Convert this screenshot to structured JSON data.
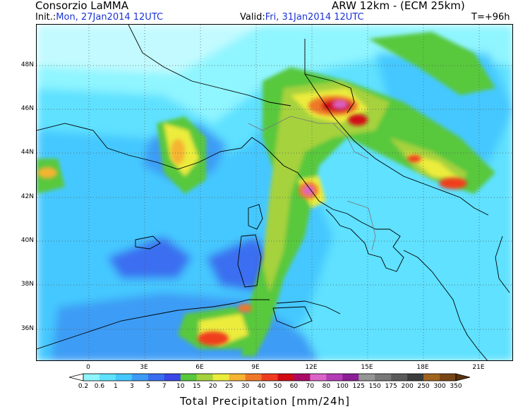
{
  "header": {
    "producer": "Consorzio LaMMA",
    "model": "ARW 12km - (ECM 25km)",
    "init_label": "Init.:",
    "init_value": "Mon, 27Jan2014 12UTC",
    "valid_label": "Valid:",
    "valid_value": "Fri, 31Jan2014 12UTC",
    "lead_time": "T=+96h"
  },
  "map": {
    "lat_labels": [
      "48N",
      "46N",
      "44N",
      "42N",
      "40N",
      "38N",
      "36N"
    ],
    "lon_labels": [
      "0",
      "3E",
      "6E",
      "9E",
      "12E",
      "15E",
      "18E",
      "21E"
    ]
  },
  "colorbar": {
    "title": "Total Precipitation [mm/24h]",
    "ticks": [
      "0.2",
      "0.6",
      "1",
      "3",
      "5",
      "7",
      "10",
      "15",
      "20",
      "25",
      "30",
      "40",
      "50",
      "60",
      "70",
      "80",
      "100",
      "125",
      "150",
      "175",
      "200",
      "250",
      "300",
      "350"
    ],
    "colors": [
      "#ffffff",
      "#8ff5ff",
      "#5fe1ff",
      "#44c8ff",
      "#3c9cf5",
      "#3a6ef0",
      "#3a46e6",
      "#58c83c",
      "#a6d23c",
      "#ecec3c",
      "#f5b432",
      "#f07828",
      "#f03c1e",
      "#d20a14",
      "#aa0a64",
      "#dc64c8",
      "#b43cb4",
      "#8c1e96",
      "#969696",
      "#787878",
      "#5a5a5a",
      "#3c3c3c",
      "#a0641e",
      "#784614",
      "#5a320a"
    ]
  }
}
